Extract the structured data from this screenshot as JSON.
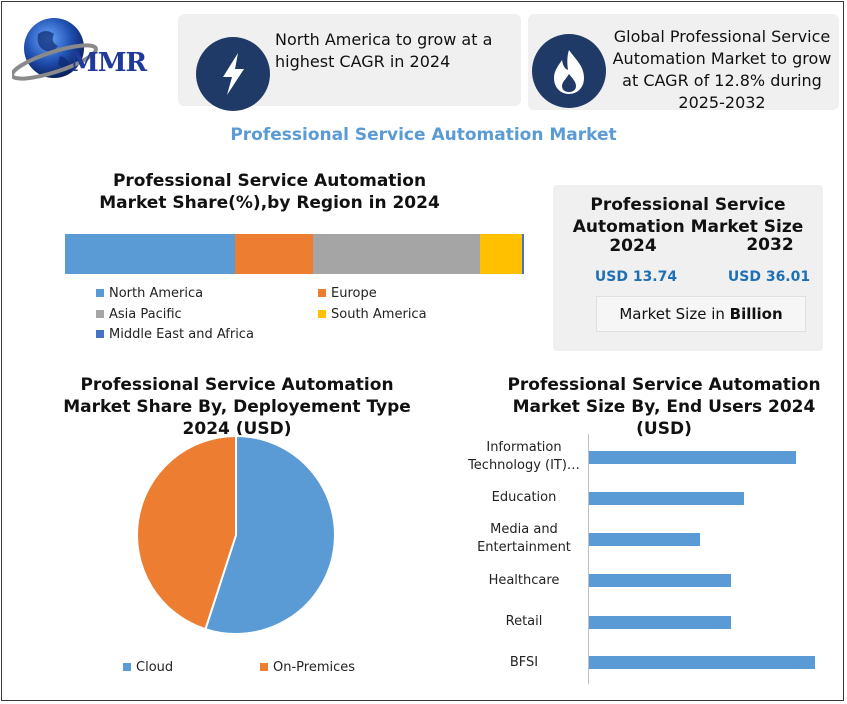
{
  "logo": {
    "text": "MMR"
  },
  "banners": [
    {
      "icon": "lightning-icon",
      "text": "North America to grow at a highest CAGR in 2024"
    },
    {
      "icon": "flame-icon",
      "text": "Global Professional Service Automation Market to grow at CAGR of 12.8% during 2025-2032"
    }
  ],
  "main_title": "Professional Service Automation Market",
  "size_box": {
    "title": "Professional Service Automation Market Size",
    "year1": "2024",
    "year2": "2032",
    "value1": "USD 13.74",
    "value2": "USD 36.01",
    "note_prefix": "Market Size in ",
    "note_bold": "Billion"
  },
  "colors": {
    "north_america": "#5b9bd5",
    "europe": "#ed7d31",
    "asia_pacific": "#a5a5a5",
    "south_america": "#ffc000",
    "mea": "#4472c4",
    "navy": "#1f3a66",
    "title_blue": "#5b9bd5",
    "value_blue": "#1f6fb5"
  },
  "chart_data": [
    {
      "type": "bar",
      "stacked": true,
      "orientation": "horizontal",
      "title": "Professional Service Automation Market Share(%),by Region in 2024",
      "series": [
        {
          "name": "North America",
          "values": [
            37
          ]
        },
        {
          "name": "Europe",
          "values": [
            17
          ]
        },
        {
          "name": "Asia Pacific",
          "values": [
            36.5
          ]
        },
        {
          "name": "South America",
          "values": [
            9
          ]
        },
        {
          "name": "Middle East and Africa",
          "values": [
            0.5
          ]
        }
      ],
      "legend": "bottom"
    },
    {
      "type": "pie",
      "title": "Professional Service Automation Market Share By, Deployement Type 2024  (USD)",
      "labels": [
        "Cloud",
        "On-Premices"
      ],
      "values": [
        55,
        45
      ],
      "legend": "bottom"
    },
    {
      "type": "bar",
      "orientation": "horizontal",
      "title": "Professional Service Automation Market Size By,  End Users 2024 (USD)",
      "categories": [
        "Information Technology (IT)…",
        "Education",
        "Media and Entertainment",
        "Healthcare",
        "Retail",
        "BFSI"
      ],
      "values": [
        3.35,
        2.5,
        1.8,
        2.3,
        2.3,
        3.65
      ],
      "xlim": [
        0,
        3.8
      ],
      "grid": false
    }
  ]
}
